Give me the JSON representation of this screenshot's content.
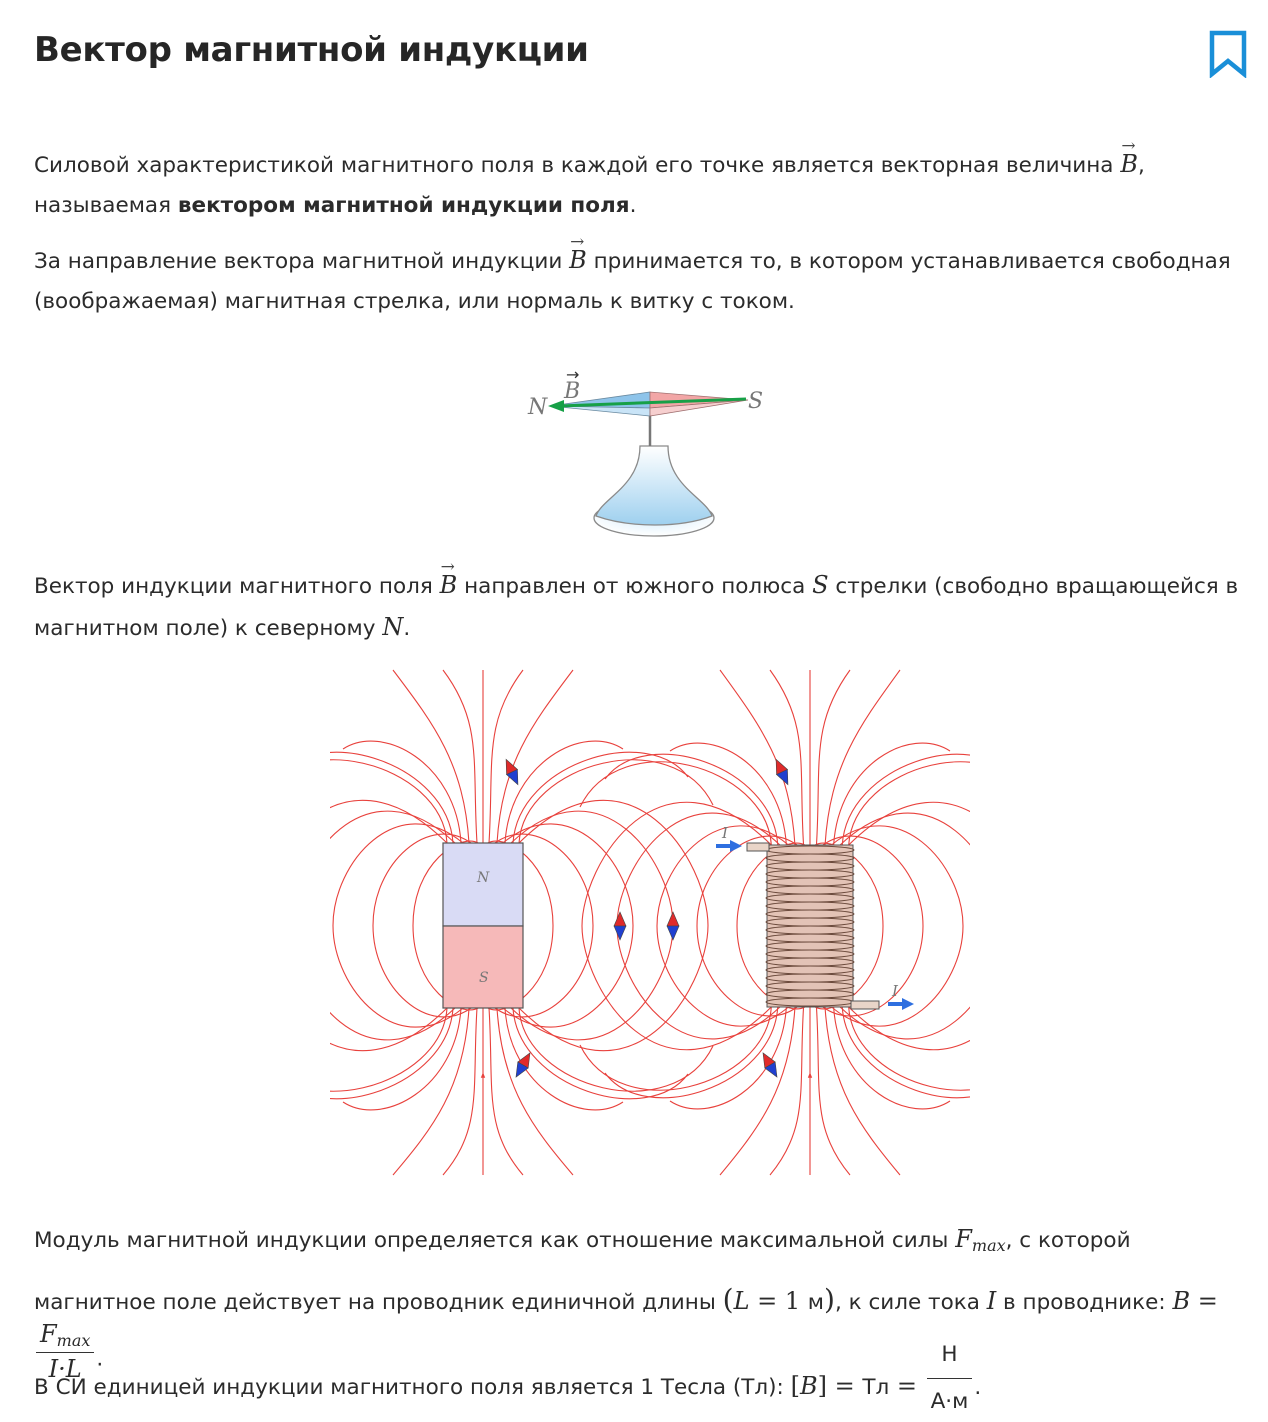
{
  "title": "Вектор магнитной индукции",
  "p1": {
    "a": "Силовой характеристикой магнитного поля в каждой его точке является векторная величина ",
    "var": "B",
    "b": ", называемая ",
    "bold": "вектором магнитной индукции поля",
    "c": "."
  },
  "p2": {
    "a": "За направление вектора магнитной индукции ",
    "var": "B",
    "b": " принимается то, в котором устанавливается свободная (воображаемая) магнитная стрелка, или нормаль к витку с током."
  },
  "compass": {
    "label_n": "N",
    "label_s": "S",
    "label_b": "B"
  },
  "p3": {
    "a": "Вектор индукции магнитного поля ",
    "var_b": "B",
    "b": " направлен от южного полюса ",
    "var_s": "S",
    "c": " стрелки (свободно вращающейся в магнитном поле) к северному ",
    "var_n": "N",
    "d": "."
  },
  "field_figure": {
    "magnet_n": "N",
    "magnet_s": "S",
    "current_in": "I",
    "current_out": "I"
  },
  "p4": {
    "a": "Модуль магнитной индукции определяется как отношение максимальной силы ",
    "f": "F",
    "fsub": "max",
    "b": ", с которой магнитное поле действует на проводник единичной длины ",
    "lparen": "(",
    "eq_l": "L",
    "eq_mid": " = 1 ",
    "unit_m": "м",
    "rparen": ")",
    "c": ", к силе тока ",
    "i": "I",
    "d": " в проводнике: ",
    "b_var": "B",
    "equals": " = ",
    "frac_num_f": "F",
    "frac_num_sub": "max",
    "frac_den": "I·L",
    "e": "."
  },
  "p5": {
    "a": "В СИ единицей индукции магнитного поля является 1 Тесла (Тл): ",
    "lb": "[",
    "b_var": "B",
    "rb": "]",
    "eq1": " = ",
    "tl": "Тл",
    "eq2": " = ",
    "num": "Н",
    "den": "А·м",
    "end": "."
  },
  "colors": {
    "field_line": "#e8413c",
    "arrow_green": "#17a047",
    "bookmark": "#1a8fd8",
    "current_arrow": "#2e6fe0"
  }
}
